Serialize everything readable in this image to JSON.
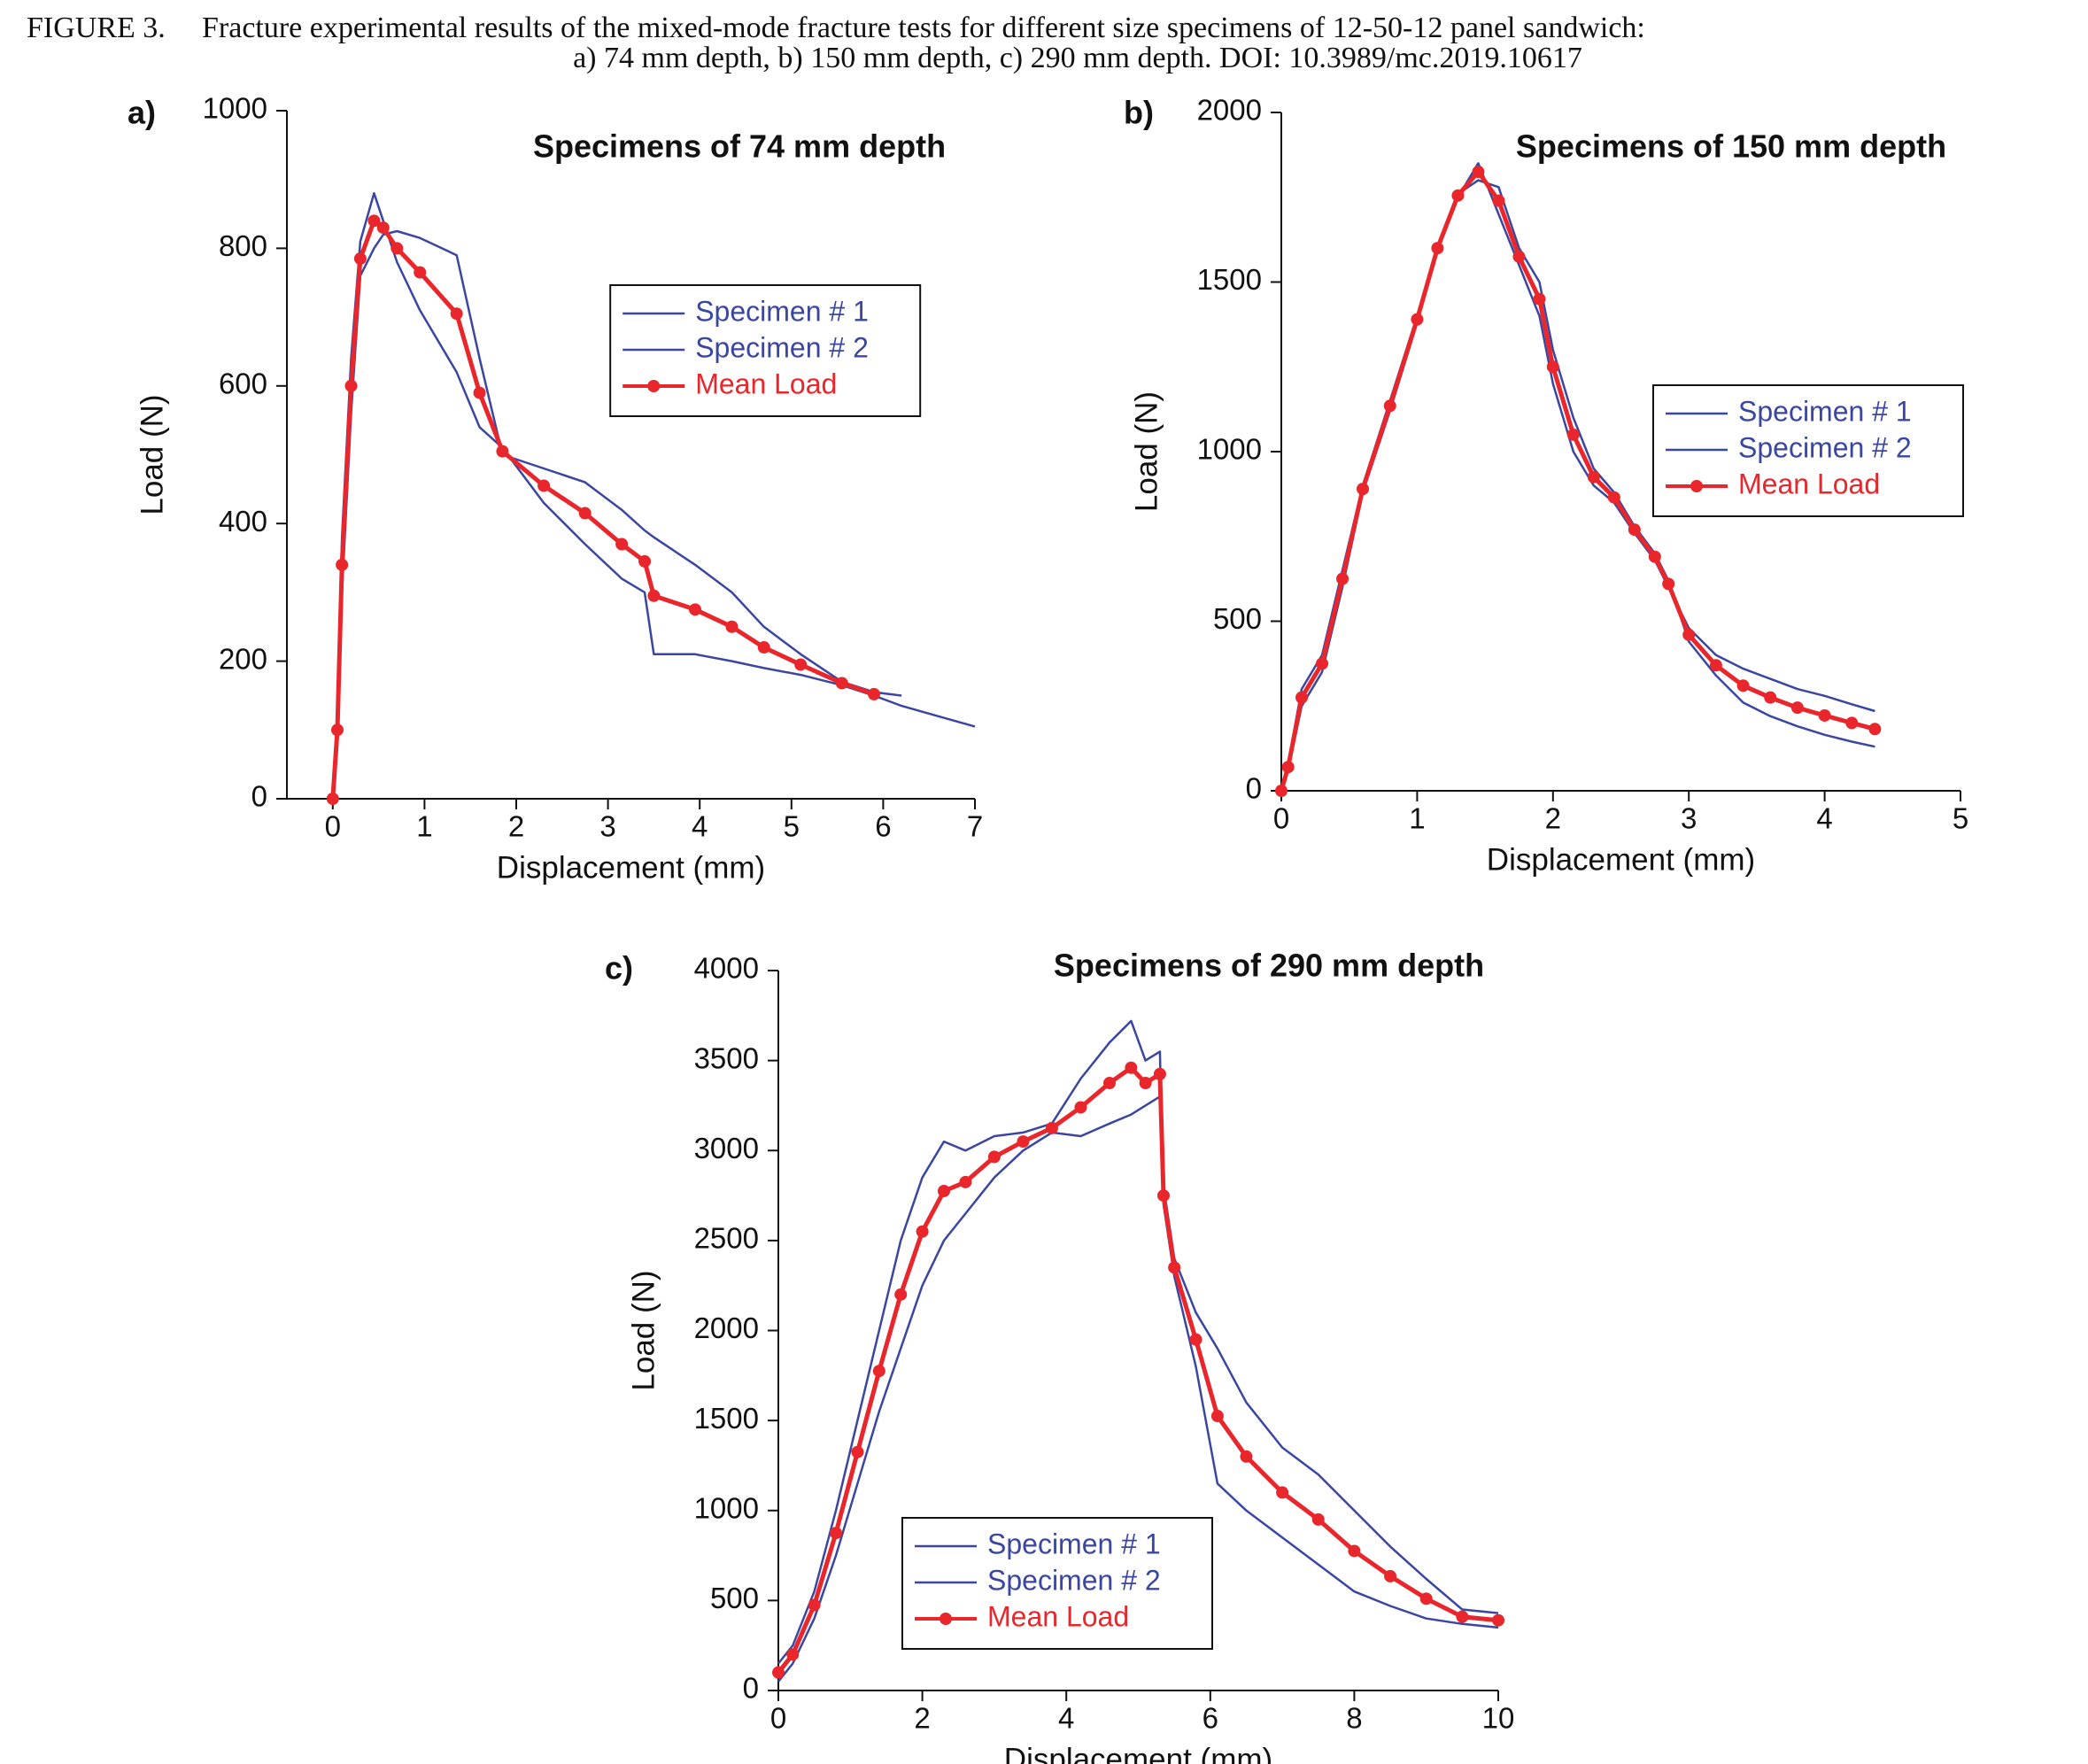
{
  "caption": {
    "label": "FIGURE 3.",
    "line1": "Fracture experimental results of the mixed-mode fracture tests for different size specimens of 12-50-12 panel sandwich:",
    "line2": "a) 74 mm depth, b) 150 mm depth, c) 290 mm depth. DOI: 10.3989/mc.2019.10617"
  },
  "chart_data": [
    {
      "type": "line",
      "panel": "a)",
      "title": "Specimens of 74 mm depth",
      "x_label": "Displacement (mm)",
      "y_label": "Load (N)",
      "xlim": [
        -0.5,
        7
      ],
      "ylim": [
        0,
        1000
      ],
      "xticks": [
        0,
        1,
        2,
        3,
        4,
        5,
        6,
        7
      ],
      "yticks": [
        0,
        200,
        400,
        600,
        800,
        1000
      ],
      "x": [
        0,
        0.05,
        0.1,
        0.2,
        0.3,
        0.45,
        0.55,
        0.7,
        0.95,
        1.35,
        1.6,
        1.85,
        2.3,
        2.75,
        3.15,
        3.4,
        3.5,
        3.95,
        4.35,
        4.7,
        5.1,
        5.55,
        5.9,
        6.2,
        6.6,
        7.0
      ],
      "series": [
        {
          "name": "Specimen # 1",
          "color": "#3a46a0",
          "markers": false,
          "values": [
            0,
            120,
            380,
            640,
            810,
            880,
            840,
            780,
            710,
            620,
            540,
            510,
            430,
            370,
            320,
            300,
            210,
            210,
            200,
            190,
            180,
            165,
            150,
            135,
            120,
            105
          ]
        },
        {
          "name": "Specimen # 2",
          "color": "#3a46a0",
          "markers": false,
          "values": [
            0,
            80,
            300,
            560,
            760,
            800,
            820,
            825,
            815,
            790,
            640,
            500,
            480,
            460,
            420,
            390,
            380,
            340,
            300,
            250,
            210,
            170,
            155,
            150,
            null,
            null
          ]
        },
        {
          "name": "Mean Load",
          "color": "#e8262b",
          "markers": true,
          "values": [
            0,
            100,
            340,
            600,
            785,
            840,
            830,
            800,
            765,
            705,
            590,
            505,
            455,
            415,
            370,
            345,
            295,
            275,
            250,
            220,
            195,
            168,
            152,
            null,
            null,
            null
          ]
        }
      ],
      "legend": "upper right"
    },
    {
      "type": "line",
      "panel": "b)",
      "title": "Specimens of 150 mm depth",
      "x_label": "Displacement (mm)",
      "y_label": "Load (N)",
      "xlim": [
        0,
        5
      ],
      "ylim": [
        0,
        2000
      ],
      "xticks": [
        0,
        1,
        2,
        3,
        4,
        5
      ],
      "yticks": [
        0,
        500,
        1000,
        1500,
        2000
      ],
      "x": [
        0,
        0.05,
        0.15,
        0.3,
        0.45,
        0.6,
        0.8,
        1.0,
        1.15,
        1.3,
        1.45,
        1.6,
        1.75,
        1.9,
        2.0,
        2.15,
        2.3,
        2.45,
        2.6,
        2.75,
        2.85,
        3.0,
        3.2,
        3.4,
        3.6,
        3.8,
        4.0,
        4.2,
        4.37
      ],
      "series": [
        {
          "name": "Specimen # 1",
          "color": "#3a46a0",
          "markers": false,
          "values": [
            0,
            80,
            300,
            400,
            650,
            900,
            1150,
            1400,
            1600,
            1750,
            1850,
            1700,
            1550,
            1400,
            1200,
            1000,
            900,
            850,
            760,
            680,
            600,
            480,
            400,
            360,
            330,
            300,
            280,
            255,
            235
          ]
        },
        {
          "name": "Specimen # 2",
          "color": "#3a46a0",
          "markers": false,
          "values": [
            0,
            60,
            250,
            350,
            600,
            880,
            1120,
            1380,
            1600,
            1760,
            1800,
            1780,
            1600,
            1500,
            1300,
            1100,
            950,
            880,
            780,
            700,
            620,
            440,
            340,
            260,
            220,
            190,
            165,
            145,
            130
          ]
        },
        {
          "name": "Mean Load",
          "color": "#e8262b",
          "markers": true,
          "values": [
            0,
            70,
            275,
            375,
            625,
            890,
            1135,
            1390,
            1600,
            1755,
            1825,
            1740,
            1575,
            1450,
            1250,
            1050,
            925,
            865,
            770,
            690,
            610,
            460,
            370,
            310,
            275,
            245,
            222,
            200,
            182
          ]
        }
      ],
      "legend": "center right"
    },
    {
      "type": "line",
      "panel": "c)",
      "title": "Specimens of 290 mm depth",
      "x_label": "Displacement (mm)",
      "y_label": "Load (N)",
      "xlim": [
        0,
        10
      ],
      "ylim": [
        0,
        4000
      ],
      "xticks": [
        0,
        2,
        4,
        6,
        8,
        10
      ],
      "yticks": [
        0,
        500,
        1000,
        1500,
        2000,
        2500,
        3000,
        3500,
        4000
      ],
      "x": [
        0,
        0.2,
        0.5,
        0.8,
        1.1,
        1.4,
        1.7,
        2.0,
        2.3,
        2.6,
        3.0,
        3.4,
        3.8,
        4.2,
        4.6,
        4.9,
        5.1,
        5.3,
        5.35,
        5.5,
        5.8,
        6.1,
        6.5,
        7.0,
        7.5,
        8.0,
        8.5,
        9.0,
        9.5,
        10
      ],
      "series": [
        {
          "name": "Specimen # 1",
          "color": "#3a46a0",
          "markers": false,
          "values": [
            150,
            250,
            550,
            1000,
            1500,
            2000,
            2500,
            2850,
            3050,
            3000,
            3080,
            3100,
            3150,
            3400,
            3600,
            3720,
            3500,
            3550,
            2700,
            2300,
            1800,
            1150,
            1000,
            850,
            700,
            550,
            470,
            400,
            370,
            350
          ]
        },
        {
          "name": "Specimen # 2",
          "color": "#3a46a0",
          "markers": false,
          "values": [
            50,
            150,
            400,
            750,
            1150,
            1550,
            1900,
            2250,
            2500,
            2650,
            2850,
            3000,
            3100,
            3080,
            3150,
            3200,
            3250,
            3300,
            2800,
            2400,
            2100,
            1900,
            1600,
            1350,
            1200,
            1000,
            800,
            620,
            450,
            430
          ]
        },
        {
          "name": "Mean Load",
          "color": "#e8262b",
          "markers": true,
          "values": [
            100,
            200,
            475,
            875,
            1325,
            1775,
            2200,
            2550,
            2775,
            2825,
            2965,
            3050,
            3125,
            3240,
            3375,
            3460,
            3375,
            3425,
            2750,
            2350,
            1950,
            1525,
            1300,
            1100,
            950,
            775,
            635,
            510,
            410,
            390
          ]
        }
      ],
      "legend": "lower left"
    }
  ]
}
